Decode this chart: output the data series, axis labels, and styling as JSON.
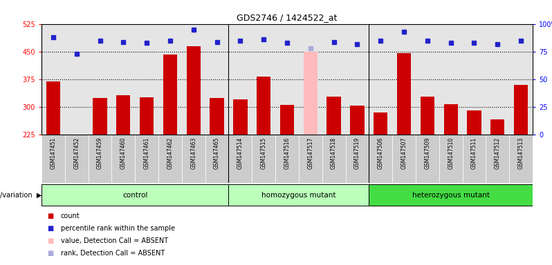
{
  "title": "GDS2746 / 1424522_at",
  "samples": [
    "GSM147451",
    "GSM147452",
    "GSM147459",
    "GSM147460",
    "GSM147461",
    "GSM147462",
    "GSM147463",
    "GSM147465",
    "GSM147514",
    "GSM147515",
    "GSM147516",
    "GSM147517",
    "GSM147518",
    "GSM147519",
    "GSM147506",
    "GSM147507",
    "GSM147509",
    "GSM147510",
    "GSM147511",
    "GSM147512",
    "GSM147513"
  ],
  "counts": [
    370,
    225,
    325,
    332,
    327,
    443,
    465,
    325,
    320,
    383,
    305,
    450,
    328,
    303,
    285,
    447,
    328,
    307,
    290,
    267,
    360
  ],
  "percentile_ranks": [
    88,
    73,
    85,
    84,
    83,
    85,
    95,
    84,
    85,
    86,
    83,
    78,
    84,
    82,
    85,
    93,
    85,
    83,
    83,
    82,
    85
  ],
  "absent_mask": [
    false,
    false,
    false,
    false,
    false,
    false,
    false,
    false,
    false,
    false,
    false,
    true,
    false,
    false,
    false,
    false,
    false,
    false,
    false,
    false,
    false
  ],
  "groups": [
    {
      "label": "control",
      "start": 0,
      "end": 7
    },
    {
      "label": "homozygous mutant",
      "start": 8,
      "end": 13
    },
    {
      "label": "heterozygous mutant",
      "start": 14,
      "end": 20
    }
  ],
  "group_colors": [
    "#bbffbb",
    "#bbffbb",
    "#44dd44"
  ],
  "ylim": [
    225,
    525
  ],
  "yticks_left": [
    225,
    300,
    375,
    450,
    525
  ],
  "yticks_right": [
    0,
    25,
    50,
    75,
    100
  ],
  "grid_lines": [
    300,
    375,
    450
  ],
  "bar_color": "#cc0000",
  "absent_bar_color": "#ffbbbb",
  "rank_color": "#2222cc",
  "absent_rank_color": "#aaaadd",
  "col_bg": "#cccccc"
}
